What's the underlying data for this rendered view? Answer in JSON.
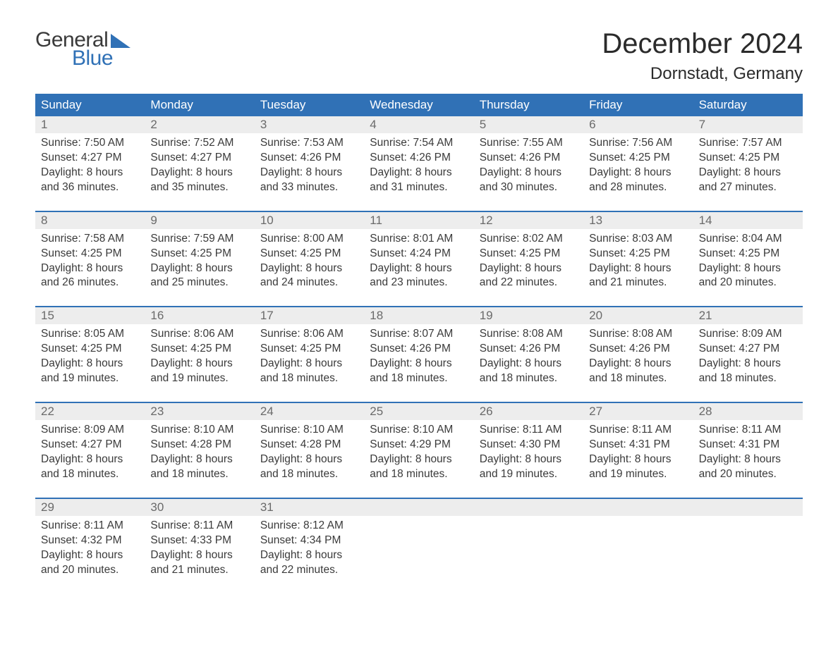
{
  "logo": {
    "word1": "General",
    "word2": "Blue"
  },
  "title": "December 2024",
  "location": "Dornstadt, Germany",
  "colors": {
    "brand_blue": "#3071b6",
    "header_text": "#ffffff",
    "daynum_bg": "#ededed",
    "daynum_text": "#6a6a6a",
    "body_text": "#3a3a3a",
    "page_bg": "#ffffff"
  },
  "typography": {
    "title_fontsize": 40,
    "location_fontsize": 24,
    "dow_fontsize": 17,
    "body_fontsize": 15.5
  },
  "dow": [
    "Sunday",
    "Monday",
    "Tuesday",
    "Wednesday",
    "Thursday",
    "Friday",
    "Saturday"
  ],
  "labels": {
    "sunrise": "Sunrise:",
    "sunset": "Sunset:",
    "daylight": "Daylight:"
  },
  "days": [
    {
      "n": 1,
      "sunrise": "7:50 AM",
      "sunset": "4:27 PM",
      "dl1": "8 hours",
      "dl2": "and 36 minutes."
    },
    {
      "n": 2,
      "sunrise": "7:52 AM",
      "sunset": "4:27 PM",
      "dl1": "8 hours",
      "dl2": "and 35 minutes."
    },
    {
      "n": 3,
      "sunrise": "7:53 AM",
      "sunset": "4:26 PM",
      "dl1": "8 hours",
      "dl2": "and 33 minutes."
    },
    {
      "n": 4,
      "sunrise": "7:54 AM",
      "sunset": "4:26 PM",
      "dl1": "8 hours",
      "dl2": "and 31 minutes."
    },
    {
      "n": 5,
      "sunrise": "7:55 AM",
      "sunset": "4:26 PM",
      "dl1": "8 hours",
      "dl2": "and 30 minutes."
    },
    {
      "n": 6,
      "sunrise": "7:56 AM",
      "sunset": "4:25 PM",
      "dl1": "8 hours",
      "dl2": "and 28 minutes."
    },
    {
      "n": 7,
      "sunrise": "7:57 AM",
      "sunset": "4:25 PM",
      "dl1": "8 hours",
      "dl2": "and 27 minutes."
    },
    {
      "n": 8,
      "sunrise": "7:58 AM",
      "sunset": "4:25 PM",
      "dl1": "8 hours",
      "dl2": "and 26 minutes."
    },
    {
      "n": 9,
      "sunrise": "7:59 AM",
      "sunset": "4:25 PM",
      "dl1": "8 hours",
      "dl2": "and 25 minutes."
    },
    {
      "n": 10,
      "sunrise": "8:00 AM",
      "sunset": "4:25 PM",
      "dl1": "8 hours",
      "dl2": "and 24 minutes."
    },
    {
      "n": 11,
      "sunrise": "8:01 AM",
      "sunset": "4:24 PM",
      "dl1": "8 hours",
      "dl2": "and 23 minutes."
    },
    {
      "n": 12,
      "sunrise": "8:02 AM",
      "sunset": "4:25 PM",
      "dl1": "8 hours",
      "dl2": "and 22 minutes."
    },
    {
      "n": 13,
      "sunrise": "8:03 AM",
      "sunset": "4:25 PM",
      "dl1": "8 hours",
      "dl2": "and 21 minutes."
    },
    {
      "n": 14,
      "sunrise": "8:04 AM",
      "sunset": "4:25 PM",
      "dl1": "8 hours",
      "dl2": "and 20 minutes."
    },
    {
      "n": 15,
      "sunrise": "8:05 AM",
      "sunset": "4:25 PM",
      "dl1": "8 hours",
      "dl2": "and 19 minutes."
    },
    {
      "n": 16,
      "sunrise": "8:06 AM",
      "sunset": "4:25 PM",
      "dl1": "8 hours",
      "dl2": "and 19 minutes."
    },
    {
      "n": 17,
      "sunrise": "8:06 AM",
      "sunset": "4:25 PM",
      "dl1": "8 hours",
      "dl2": "and 18 minutes."
    },
    {
      "n": 18,
      "sunrise": "8:07 AM",
      "sunset": "4:26 PM",
      "dl1": "8 hours",
      "dl2": "and 18 minutes."
    },
    {
      "n": 19,
      "sunrise": "8:08 AM",
      "sunset": "4:26 PM",
      "dl1": "8 hours",
      "dl2": "and 18 minutes."
    },
    {
      "n": 20,
      "sunrise": "8:08 AM",
      "sunset": "4:26 PM",
      "dl1": "8 hours",
      "dl2": "and 18 minutes."
    },
    {
      "n": 21,
      "sunrise": "8:09 AM",
      "sunset": "4:27 PM",
      "dl1": "8 hours",
      "dl2": "and 18 minutes."
    },
    {
      "n": 22,
      "sunrise": "8:09 AM",
      "sunset": "4:27 PM",
      "dl1": "8 hours",
      "dl2": "and 18 minutes."
    },
    {
      "n": 23,
      "sunrise": "8:10 AM",
      "sunset": "4:28 PM",
      "dl1": "8 hours",
      "dl2": "and 18 minutes."
    },
    {
      "n": 24,
      "sunrise": "8:10 AM",
      "sunset": "4:28 PM",
      "dl1": "8 hours",
      "dl2": "and 18 minutes."
    },
    {
      "n": 25,
      "sunrise": "8:10 AM",
      "sunset": "4:29 PM",
      "dl1": "8 hours",
      "dl2": "and 18 minutes."
    },
    {
      "n": 26,
      "sunrise": "8:11 AM",
      "sunset": "4:30 PM",
      "dl1": "8 hours",
      "dl2": "and 19 minutes."
    },
    {
      "n": 27,
      "sunrise": "8:11 AM",
      "sunset": "4:31 PM",
      "dl1": "8 hours",
      "dl2": "and 19 minutes."
    },
    {
      "n": 28,
      "sunrise": "8:11 AM",
      "sunset": "4:31 PM",
      "dl1": "8 hours",
      "dl2": "and 20 minutes."
    },
    {
      "n": 29,
      "sunrise": "8:11 AM",
      "sunset": "4:32 PM",
      "dl1": "8 hours",
      "dl2": "and 20 minutes."
    },
    {
      "n": 30,
      "sunrise": "8:11 AM",
      "sunset": "4:33 PM",
      "dl1": "8 hours",
      "dl2": "and 21 minutes."
    },
    {
      "n": 31,
      "sunrise": "8:12 AM",
      "sunset": "4:34 PM",
      "dl1": "8 hours",
      "dl2": "and 22 minutes."
    }
  ]
}
